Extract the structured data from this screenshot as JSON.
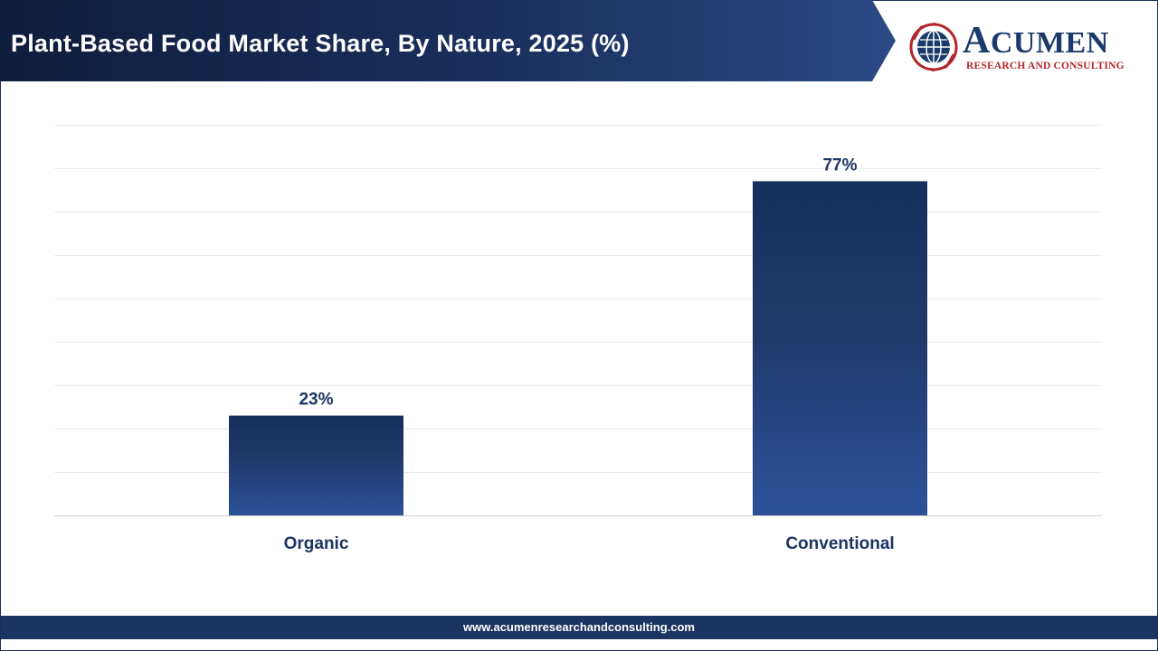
{
  "header": {
    "title": "Plant-Based Food Market Share, By Nature, 2025 (%)"
  },
  "logo": {
    "name_first": "A",
    "name_rest": "CUMEN",
    "subtitle": "RESEARCH AND CONSULTING",
    "icon": "globe-icon"
  },
  "footer": {
    "url": "www.acumenresearchandconsulting.com"
  },
  "colors": {
    "banner_dark": "#0f1d3d",
    "banner_light": "#2a4a86",
    "bar_top": "#16305c",
    "bar_bottom": "#2d5199",
    "label": "#1b3461",
    "grid": "#ececec",
    "brand_red": "#b3262c"
  },
  "chart_data": {
    "type": "bar",
    "categories": [
      "Organic",
      "Conventional"
    ],
    "values": [
      23,
      77
    ],
    "value_labels": [
      "23%",
      "77%"
    ],
    "ylim": [
      0,
      90
    ],
    "grid": true,
    "legend": "none",
    "xlabel": "",
    "ylabel": ""
  }
}
